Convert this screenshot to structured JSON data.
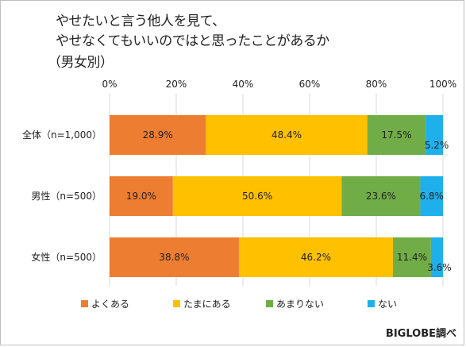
{
  "title_lines": [
    "やせたいと言う他人を見て、",
    "やせなくてもいいのではと思ったことがあるか",
    "（男女別）"
  ],
  "source": "BIGLOBE調べ",
  "colors": {
    "よくある": "#ED7D31",
    "たまにある": "#FFC000",
    "あまりない": "#70AD47",
    "ない": "#1FB0EC",
    "grid": "#d9d9d9"
  },
  "chart_data": {
    "type": "bar",
    "orientation": "horizontal",
    "stacked": true,
    "categories": [
      "全体（n=1,000）",
      "男性（n=500）",
      "女性（n=500）"
    ],
    "series": [
      {
        "name": "よくある",
        "values": [
          28.9,
          19.0,
          38.8
        ],
        "labels": [
          "28.9%",
          "19.0%",
          "38.8%"
        ]
      },
      {
        "name": "たまにある",
        "values": [
          48.4,
          50.6,
          46.2
        ],
        "labels": [
          "48.4%",
          "50.6%",
          "46.2%"
        ]
      },
      {
        "name": "あまりない",
        "values": [
          17.5,
          23.6,
          11.4
        ],
        "labels": [
          "17.5%",
          "23.6%",
          "11.4%"
        ]
      },
      {
        "name": "ない",
        "values": [
          5.2,
          6.8,
          3.6
        ],
        "labels": [
          "5.2%",
          "6.8%",
          "3.6%"
        ]
      }
    ],
    "xlim": [
      0,
      100
    ],
    "xticks": [
      "0%",
      "20%",
      "40%",
      "60%",
      "80%",
      "100%"
    ],
    "grid": true,
    "legend_position": "bottom"
  }
}
